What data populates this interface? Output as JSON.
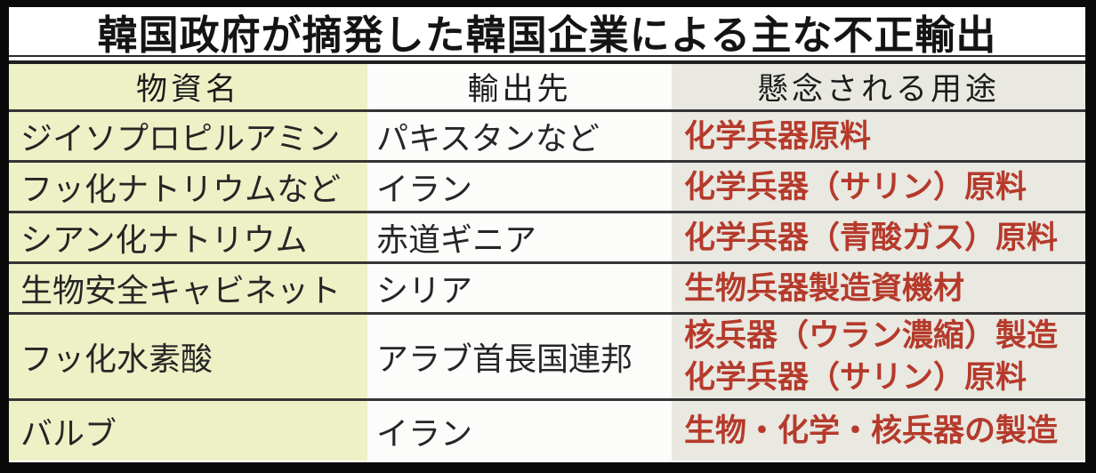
{
  "title": "韓国政府が摘発した韓国企業による主な不正輸出",
  "table": {
    "headers": [
      "物資名",
      "輸出先",
      "懸念される用途"
    ],
    "rows": [
      {
        "material": "ジイソプロピルアミン",
        "destination": "パキスタンなど",
        "uses": [
          "化学兵器原料"
        ]
      },
      {
        "material": "フッ化ナトリウムなど",
        "destination": "イラン",
        "uses": [
          "化学兵器（サリン）原料"
        ]
      },
      {
        "material": "シアン化ナトリウム",
        "destination": "赤道ギニア",
        "uses": [
          "化学兵器（青酸ガス）原料"
        ]
      },
      {
        "material": "生物安全キャビネット",
        "destination": "シリア",
        "uses": [
          "生物兵器製造資機材"
        ]
      },
      {
        "material": "フッ化水素酸",
        "destination": "アラブ首長国連邦",
        "uses": [
          "核兵器（ウラン濃縮）製造",
          "化学兵器（サリン）原料"
        ]
      },
      {
        "material": "バルブ",
        "destination": "イラン",
        "uses": [
          "生物・化学・核兵器の製造"
        ]
      }
    ]
  },
  "colors": {
    "material_column_bg": "#eef1c6",
    "destination_column_bg": "#fcfcfa",
    "use_column_bg": "#e9e8e1",
    "use_text": "#b53a2b",
    "body_text": "#262626",
    "outer_border": "#0a0a0a"
  }
}
